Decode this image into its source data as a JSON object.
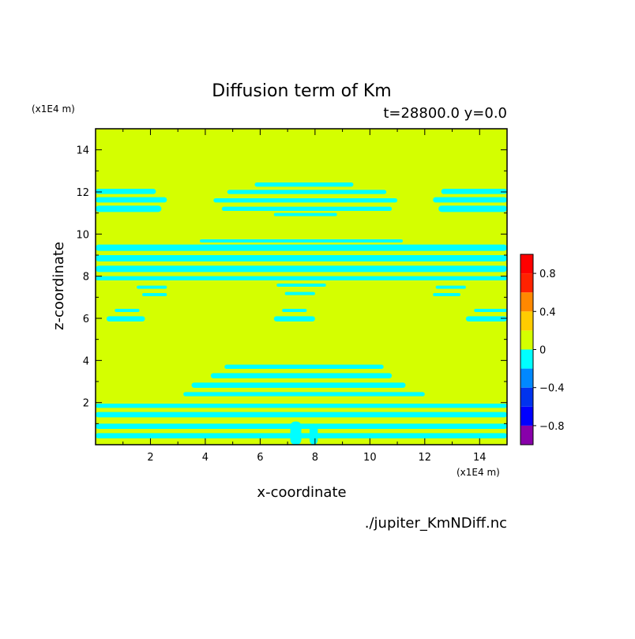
{
  "colors": {
    "background": "#ffffff",
    "field_zero": "#d4ff00",
    "field_negative": "#00ffff",
    "axis": "#000000"
  },
  "chart_data": {
    "type": "heatmap",
    "title": "Diffusion term of Km",
    "subtitle": "t=28800.0 y=0.0",
    "xlabel": "x-coordinate",
    "ylabel": "z-coordinate",
    "x_unit": "(x1E4 m)",
    "y_unit": "(x1E4 m)",
    "source": "./jupiter_KmNDiff.nc",
    "xlim": [
      0,
      15
    ],
    "ylim": [
      0,
      15
    ],
    "x_ticks": [
      2,
      4,
      6,
      8,
      10,
      12,
      14
    ],
    "y_ticks": [
      2,
      4,
      6,
      8,
      10,
      12,
      14
    ],
    "x_tick_labels": [
      "2",
      "4",
      "6",
      "8",
      "10",
      "12",
      "14"
    ],
    "y_tick_labels": [
      "2",
      "4",
      "6",
      "8",
      "10",
      "12",
      "14"
    ],
    "colorbar": {
      "levels": [
        -1.0,
        -0.8,
        -0.6,
        -0.4,
        -0.2,
        0.0,
        0.2,
        0.4,
        0.6,
        0.8,
        1.0
      ],
      "colors": [
        "#8800aa",
        "#0000ff",
        "#0033ee",
        "#0088ff",
        "#00ffff",
        "#d4ff00",
        "#ffcc00",
        "#ff8800",
        "#ff2200",
        "#ff0000",
        "#ffaaaa"
      ],
      "tick_values": [
        0.8,
        0.4,
        0,
        -0.4,
        -0.8
      ],
      "tick_labels": [
        "0.8",
        "0.4",
        "0",
        "−0.4",
        "−0.8"
      ]
    },
    "background_value": 0,
    "negative_bands": [
      {
        "x0": 0,
        "x1": 2.2,
        "z0": 11.9,
        "z1": 12.15
      },
      {
        "x0": 0,
        "x1": 2.6,
        "z0": 11.5,
        "z1": 11.75
      },
      {
        "x0": 0,
        "x1": 2.4,
        "z0": 11.05,
        "z1": 11.35
      },
      {
        "x0": 12.6,
        "x1": 15,
        "z0": 11.9,
        "z1": 12.15
      },
      {
        "x0": 12.3,
        "x1": 15,
        "z0": 11.5,
        "z1": 11.75
      },
      {
        "x0": 12.5,
        "x1": 15,
        "z0": 11.05,
        "z1": 11.35
      },
      {
        "x0": 5.8,
        "x1": 9.4,
        "z0": 12.25,
        "z1": 12.45
      },
      {
        "x0": 4.8,
        "x1": 10.6,
        "z0": 11.9,
        "z1": 12.1
      },
      {
        "x0": 4.3,
        "x1": 11.0,
        "z0": 11.5,
        "z1": 11.7
      },
      {
        "x0": 4.6,
        "x1": 10.8,
        "z0": 11.1,
        "z1": 11.3
      },
      {
        "x0": 6.5,
        "x1": 8.8,
        "z0": 10.85,
        "z1": 11.0
      },
      {
        "x0": 3.8,
        "x1": 11.2,
        "z0": 9.6,
        "z1": 9.75
      },
      {
        "x0": 0,
        "x1": 15,
        "z0": 9.2,
        "z1": 9.5
      },
      {
        "x0": 0,
        "x1": 15,
        "z0": 8.7,
        "z1": 9.0
      },
      {
        "x0": 0,
        "x1": 15,
        "z0": 8.2,
        "z1": 8.5
      },
      {
        "x0": 0,
        "x1": 15,
        "z0": 7.8,
        "z1": 8.0
      },
      {
        "x0": 1.5,
        "x1": 2.6,
        "z0": 7.4,
        "z1": 7.55
      },
      {
        "x0": 1.7,
        "x1": 2.6,
        "z0": 7.05,
        "z1": 7.2
      },
      {
        "x0": 12.4,
        "x1": 13.5,
        "z0": 7.4,
        "z1": 7.55
      },
      {
        "x0": 12.3,
        "x1": 13.3,
        "z0": 7.05,
        "z1": 7.2
      },
      {
        "x0": 6.6,
        "x1": 8.4,
        "z0": 7.5,
        "z1": 7.65
      },
      {
        "x0": 6.9,
        "x1": 8.0,
        "z0": 7.1,
        "z1": 7.25
      },
      {
        "x0": 0.7,
        "x1": 1.6,
        "z0": 6.3,
        "z1": 6.45
      },
      {
        "x0": 0.4,
        "x1": 1.8,
        "z0": 5.85,
        "z1": 6.1
      },
      {
        "x0": 6.8,
        "x1": 7.7,
        "z0": 6.3,
        "z1": 6.45
      },
      {
        "x0": 6.5,
        "x1": 8.0,
        "z0": 5.85,
        "z1": 6.1
      },
      {
        "x0": 13.8,
        "x1": 15,
        "z0": 6.3,
        "z1": 6.45
      },
      {
        "x0": 13.5,
        "x1": 15,
        "z0": 5.85,
        "z1": 6.1
      },
      {
        "x0": 4.7,
        "x1": 10.5,
        "z0": 3.6,
        "z1": 3.8
      },
      {
        "x0": 4.2,
        "x1": 10.8,
        "z0": 3.15,
        "z1": 3.4
      },
      {
        "x0": 3.5,
        "x1": 11.3,
        "z0": 2.7,
        "z1": 2.95
      },
      {
        "x0": 3.2,
        "x1": 12.0,
        "z0": 2.3,
        "z1": 2.5
      },
      {
        "x0": 0,
        "x1": 15,
        "z0": 1.75,
        "z1": 1.95
      },
      {
        "x0": 0,
        "x1": 15,
        "z0": 1.3,
        "z1": 1.55
      },
      {
        "x0": 0,
        "x1": 15,
        "z0": 0.75,
        "z1": 1.0
      },
      {
        "x0": 0,
        "x1": 15,
        "z0": 0.3,
        "z1": 0.55
      },
      {
        "x0": 7.1,
        "x1": 7.5,
        "z0": 0,
        "z1": 1.1
      },
      {
        "x0": 7.8,
        "x1": 8.1,
        "z0": 0,
        "z1": 1.0
      }
    ]
  }
}
